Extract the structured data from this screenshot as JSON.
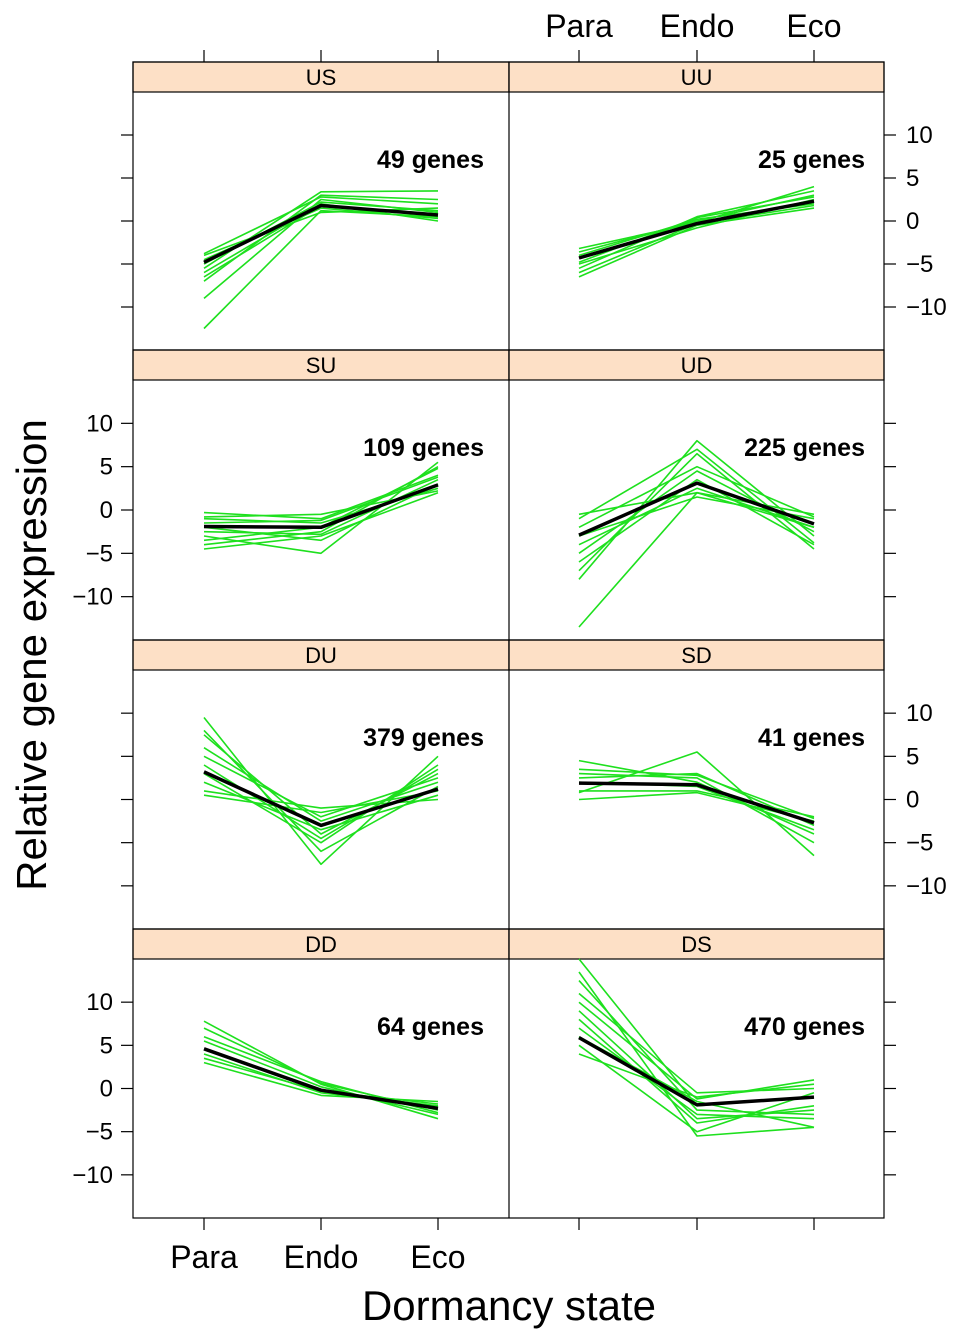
{
  "chart_data": {
    "type": "line",
    "layout": "lattice 2 columns x 4 rows",
    "xlabel": "Dormancy state",
    "ylabel": "Relative gene expression",
    "categories": [
      "Para",
      "Endo",
      "Eco"
    ],
    "ylim": [
      -15,
      15
    ],
    "yticks": [
      -10,
      -5,
      0,
      5,
      10
    ],
    "colors": {
      "gene_lines": "#1ee01e",
      "mean_line": "#000000",
      "strip": "#fde0c6"
    },
    "panels": [
      {
        "name": "US",
        "count_label": "49 genes",
        "mean": [
          -4.8,
          1.8,
          0.7
        ],
        "genes": [
          [
            -12.5,
            1.2,
            0.5
          ],
          [
            -9.0,
            2.5,
            1.0
          ],
          [
            -7.0,
            3.0,
            2.5
          ],
          [
            -6.0,
            2.0,
            0.0
          ],
          [
            -5.5,
            3.4,
            3.5
          ],
          [
            -4.0,
            1.0,
            1.5
          ],
          [
            -3.8,
            2.8,
            2.0
          ],
          [
            -4.5,
            1.5,
            0.3
          ],
          [
            -5.0,
            2.2,
            1.2
          ],
          [
            -6.5,
            1.8,
            0.8
          ]
        ]
      },
      {
        "name": "UU",
        "count_label": "25 genes",
        "mean": [
          -4.3,
          -0.3,
          2.3
        ],
        "genes": [
          [
            -6.5,
            -0.5,
            1.5
          ],
          [
            -5.5,
            0.5,
            3.5
          ],
          [
            -3.2,
            -0.2,
            4.0
          ],
          [
            -4.0,
            0.2,
            2.0
          ],
          [
            -5.0,
            -0.8,
            2.5
          ],
          [
            -3.6,
            0.0,
            3.0
          ],
          [
            -6.0,
            -0.3,
            1.8
          ],
          [
            -4.8,
            0.4,
            2.8
          ]
        ]
      },
      {
        "name": "SU",
        "count_label": "109 genes",
        "mean": [
          -1.9,
          -2.0,
          2.9
        ],
        "genes": [
          [
            -4.5,
            -3.0,
            2.0
          ],
          [
            -0.3,
            -1.0,
            4.0
          ],
          [
            -3.0,
            -5.0,
            5.5
          ],
          [
            -2.5,
            -2.8,
            3.5
          ],
          [
            -1.0,
            -1.5,
            2.5
          ],
          [
            -3.5,
            -2.0,
            4.8
          ],
          [
            -0.8,
            -0.5,
            2.2
          ],
          [
            -2.0,
            -3.5,
            3.0
          ],
          [
            -4.0,
            -2.5,
            5.0
          ],
          [
            -1.5,
            -1.2,
            3.8
          ]
        ]
      },
      {
        "name": "UD",
        "count_label": "225 genes",
        "mean": [
          -2.9,
          3.1,
          -1.6
        ],
        "genes": [
          [
            -13.5,
            2.0,
            -2.0
          ],
          [
            -8.0,
            8.0,
            -3.0
          ],
          [
            -7.0,
            6.5,
            -4.5
          ],
          [
            -0.5,
            2.0,
            -0.5
          ],
          [
            -5.0,
            4.5,
            -2.5
          ],
          [
            -3.0,
            1.5,
            -1.0
          ],
          [
            -1.0,
            7.0,
            -3.8
          ],
          [
            -6.0,
            3.5,
            -4.0
          ],
          [
            -2.0,
            5.0,
            -0.8
          ],
          [
            -4.0,
            2.5,
            -2.0
          ]
        ]
      },
      {
        "name": "DU",
        "count_label": "379 genes",
        "mean": [
          3.2,
          -3.0,
          1.2
        ],
        "genes": [
          [
            9.5,
            -7.5,
            5.0
          ],
          [
            7.5,
            -4.0,
            3.0
          ],
          [
            5.0,
            -2.0,
            2.5
          ],
          [
            1.0,
            -1.0,
            0.0
          ],
          [
            3.0,
            -5.0,
            4.0
          ],
          [
            8.0,
            -6.0,
            1.5
          ],
          [
            2.0,
            -3.5,
            0.5
          ],
          [
            6.0,
            -2.5,
            2.0
          ],
          [
            4.0,
            -4.5,
            3.5
          ],
          [
            0.5,
            -1.5,
            1.0
          ]
        ]
      },
      {
        "name": "SD",
        "count_label": "41 genes",
        "mean": [
          1.9,
          1.7,
          -2.7
        ],
        "genes": [
          [
            4.5,
            2.0,
            -4.0
          ],
          [
            0.8,
            5.5,
            -6.5
          ],
          [
            2.5,
            3.0,
            -3.0
          ],
          [
            1.0,
            1.0,
            -2.0
          ],
          [
            3.0,
            2.5,
            -5.0
          ],
          [
            0.0,
            0.8,
            -2.5
          ],
          [
            2.0,
            1.5,
            -3.5
          ],
          [
            3.5,
            2.8,
            -2.2
          ]
        ]
      },
      {
        "name": "DD",
        "count_label": "64 genes",
        "mean": [
          4.6,
          -0.2,
          -2.3
        ],
        "genes": [
          [
            7.8,
            0.5,
            -3.5
          ],
          [
            3.0,
            -0.8,
            -1.5
          ],
          [
            6.0,
            0.8,
            -2.8
          ],
          [
            4.0,
            -0.5,
            -2.0
          ],
          [
            5.5,
            0.2,
            -3.0
          ],
          [
            3.5,
            -0.3,
            -1.8
          ],
          [
            7.0,
            0.6,
            -2.5
          ]
        ]
      },
      {
        "name": "DS",
        "count_label": "470  genes",
        "mean": [
          5.9,
          -1.9,
          -1.0
        ],
        "genes": [
          [
            15.0,
            -2.0,
            -1.0
          ],
          [
            13.5,
            -5.5,
            -4.5
          ],
          [
            11.0,
            -0.5,
            0.0
          ],
          [
            9.0,
            -3.5,
            -2.5
          ],
          [
            6.0,
            -1.5,
            -4.5
          ],
          [
            4.0,
            -1.0,
            0.5
          ],
          [
            8.0,
            -4.0,
            -2.0
          ],
          [
            12.5,
            -2.5,
            -3.0
          ],
          [
            5.0,
            -5.0,
            -0.5
          ],
          [
            10.0,
            -1.2,
            1.0
          ],
          [
            7.0,
            -3.0,
            -3.5
          ]
        ]
      }
    ]
  }
}
